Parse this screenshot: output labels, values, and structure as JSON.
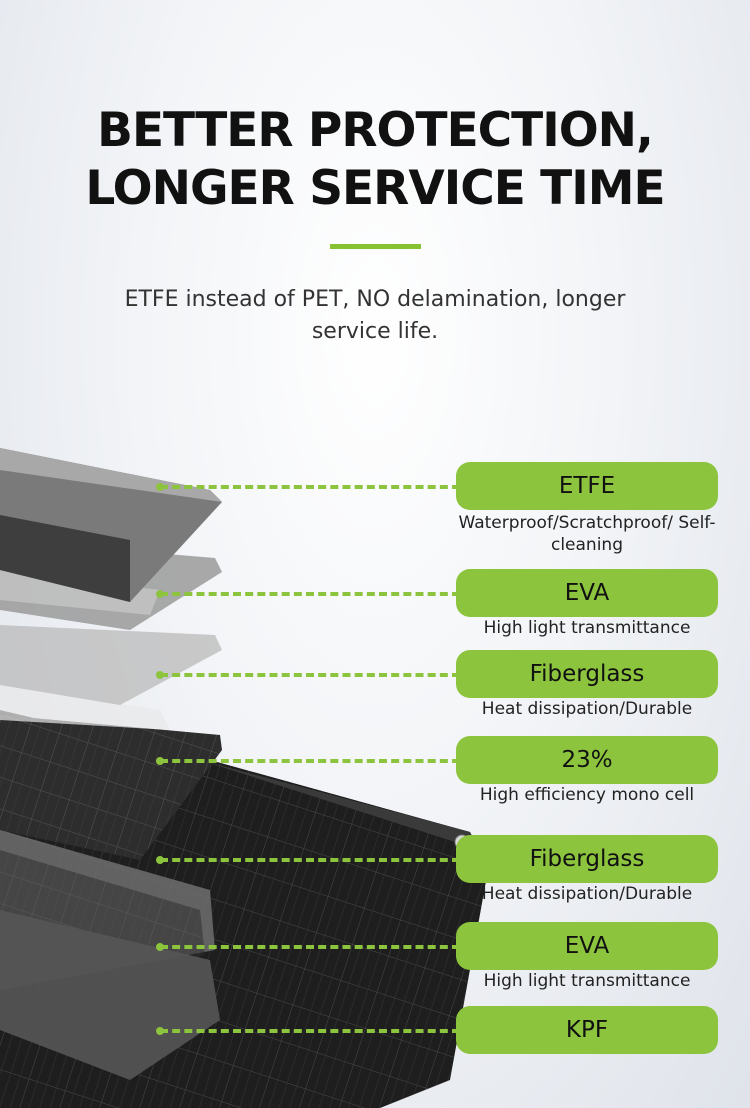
{
  "header": {
    "title_line1": "BETTER PROTECTION,",
    "title_line2": "LONGER SERVICE TIME",
    "subtitle": "ETFE instead of PET, NO delamination, longer service life."
  },
  "colors": {
    "accent": "#8cc43e",
    "title": "#111111",
    "panel": "#2a2a2a"
  },
  "layers": [
    {
      "label": "ETFE",
      "description": "Waterproof/Scratchproof/ Self-cleaning"
    },
    {
      "label": "EVA",
      "description": "High light transmittance"
    },
    {
      "label": "Fiberglass",
      "description": "Heat dissipation/Durable"
    },
    {
      "label": "23%",
      "description": "High efficiency mono cell"
    },
    {
      "label": "Fiberglass",
      "description": "Heat dissipation/Durable"
    },
    {
      "label": "EVA",
      "description": "High light transmittance"
    },
    {
      "label": "KPF",
      "description": ""
    }
  ]
}
